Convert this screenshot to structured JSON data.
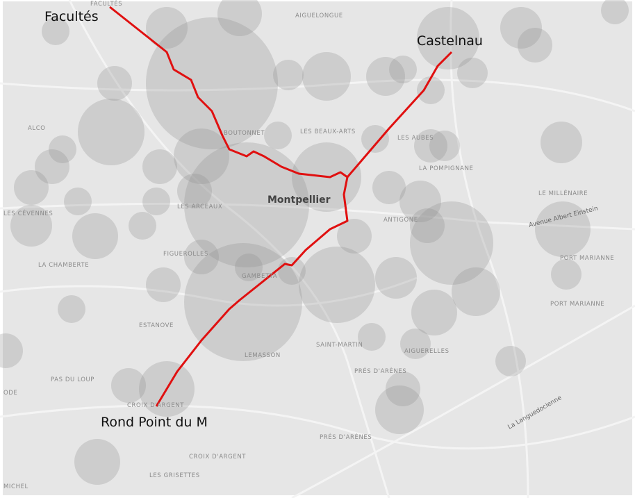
{
  "city": "Montpellier",
  "line_endpoints": [
    "Facultés",
    "Castelnau",
    "Rond Point du M"
  ],
  "districts": [
    "FACULTÉS",
    "AIGUELONGUE",
    "ALCO",
    "BOUTONNET",
    "LES BEAUX-ARTS",
    "LES AUBES",
    "LA POMPIGNANE",
    "LE MILLÉNAIRE",
    "LES CÉVENNES",
    "LES ARCEAUX",
    "ANTIGONE",
    "PORT MARIANNE",
    "PORT MARIANNE",
    "LA CHAMBERTE",
    "FIGUEROLLES",
    "GAMBETTA",
    "ESTANOVE",
    "SAINT-MARTIN",
    "AIGUERELLES",
    "LEMASSON",
    "PAS DU LOUP",
    "PRÉS D'ARÈNES",
    "PRÉS D'ARÈNES",
    "CROIX D'ARGENT",
    "CROIX D'ARGENT",
    "LES GRISETTES",
    "MICHEL",
    "ODE"
  ],
  "roads": [
    "Avenue Albert Einstein",
    "La Languedocienne"
  ]
}
